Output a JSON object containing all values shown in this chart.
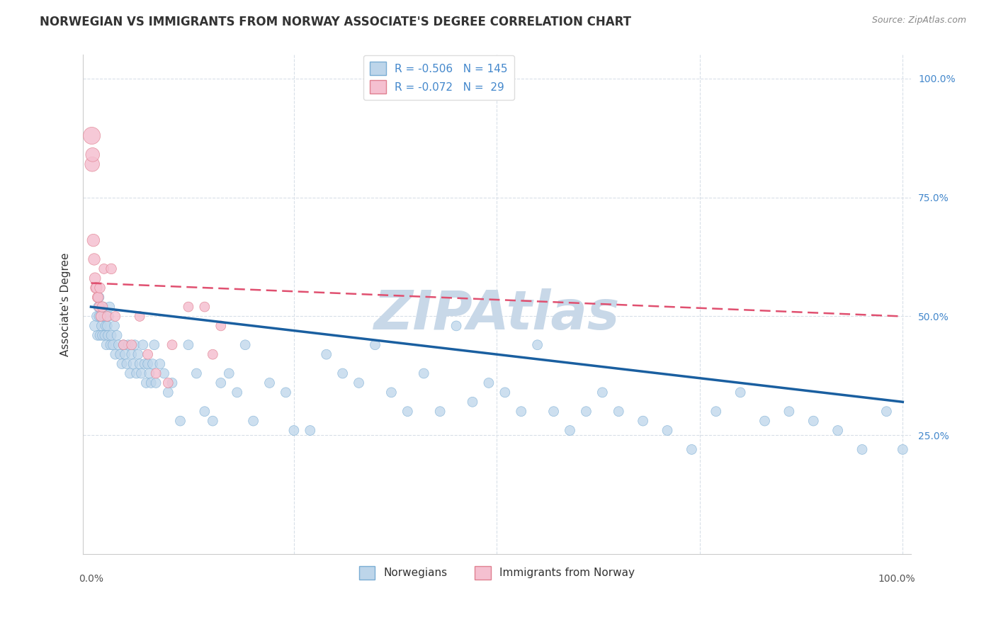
{
  "title": "NORWEGIAN VS IMMIGRANTS FROM NORWAY ASSOCIATE'S DEGREE CORRELATION CHART",
  "source": "Source: ZipAtlas.com",
  "ylabel": "Associate's Degree",
  "legend_blue_R": "-0.506",
  "legend_blue_N": "145",
  "legend_pink_R": "-0.072",
  "legend_pink_N": "29",
  "blue_face_color": "#bdd5ea",
  "blue_edge_color": "#7aadd4",
  "blue_line_color": "#1a5fa0",
  "pink_face_color": "#f5c0d0",
  "pink_edge_color": "#e08090",
  "pink_line_color": "#e05070",
  "watermark_color": "#c8d8e8",
  "grid_color": "#d8dfe8",
  "legend_label_blue": "Norwegians",
  "legend_label_pink": "Immigrants from Norway",
  "blue_scatter_x": [
    0.5,
    0.7,
    0.8,
    0.9,
    1.0,
    1.0,
    1.1,
    1.2,
    1.3,
    1.4,
    1.5,
    1.6,
    1.7,
    1.8,
    1.9,
    2.0,
    2.1,
    2.2,
    2.3,
    2.4,
    2.5,
    2.7,
    2.9,
    3.0,
    3.2,
    3.4,
    3.6,
    3.8,
    4.0,
    4.2,
    4.4,
    4.6,
    4.8,
    5.0,
    5.2,
    5.4,
    5.6,
    5.8,
    6.0,
    6.2,
    6.4,
    6.6,
    6.8,
    7.0,
    7.2,
    7.4,
    7.6,
    7.8,
    8.0,
    8.5,
    9.0,
    9.5,
    10.0,
    11.0,
    12.0,
    13.0,
    14.0,
    15.0,
    16.0,
    17.0,
    18.0,
    19.0,
    20.0,
    22.0,
    24.0,
    25.0,
    27.0,
    29.0,
    31.0,
    33.0,
    35.0,
    37.0,
    39.0,
    41.0,
    43.0,
    45.0,
    47.0,
    49.0,
    51.0,
    53.0,
    55.0,
    57.0,
    59.0,
    61.0,
    63.0,
    65.0,
    68.0,
    71.0,
    74.0,
    77.0,
    80.0,
    83.0,
    86.0,
    89.0,
    92.0,
    95.0,
    98.0,
    100.0
  ],
  "blue_scatter_y": [
    48,
    50,
    46,
    52,
    50,
    54,
    46,
    50,
    48,
    46,
    52,
    50,
    46,
    48,
    44,
    48,
    46,
    50,
    52,
    44,
    46,
    44,
    48,
    42,
    46,
    44,
    42,
    40,
    44,
    42,
    40,
    44,
    38,
    42,
    40,
    44,
    38,
    42,
    40,
    38,
    44,
    40,
    36,
    40,
    38,
    36,
    40,
    44,
    36,
    40,
    38,
    34,
    36,
    28,
    44,
    38,
    30,
    28,
    36,
    38,
    34,
    44,
    28,
    36,
    34,
    26,
    26,
    42,
    38,
    36,
    44,
    34,
    30,
    38,
    30,
    48,
    32,
    36,
    34,
    30,
    44,
    30,
    26,
    30,
    34,
    30,
    28,
    26,
    22,
    30,
    34,
    28,
    30,
    28,
    26,
    22,
    30,
    22
  ],
  "blue_scatter_s": [
    120,
    100,
    100,
    100,
    100,
    100,
    100,
    100,
    100,
    100,
    100,
    100,
    100,
    100,
    100,
    100,
    100,
    100,
    100,
    100,
    100,
    100,
    100,
    100,
    100,
    100,
    100,
    100,
    100,
    100,
    100,
    100,
    100,
    100,
    100,
    100,
    100,
    100,
    100,
    100,
    100,
    100,
    100,
    100,
    100,
    100,
    100,
    100,
    100,
    100,
    100,
    100,
    100,
    100,
    100,
    100,
    100,
    100,
    100,
    100,
    100,
    100,
    100,
    100,
    100,
    100,
    100,
    100,
    100,
    100,
    100,
    100,
    100,
    100,
    100,
    100,
    100,
    100,
    100,
    100,
    100,
    100,
    100,
    100,
    100,
    100,
    100,
    100,
    100,
    100,
    100,
    100,
    100,
    100,
    100,
    100,
    100,
    100
  ],
  "pink_scatter_x": [
    0.1,
    0.15,
    0.2,
    0.3,
    0.4,
    0.5,
    0.6,
    0.7,
    0.8,
    0.9,
    1.0,
    1.1,
    1.2,
    1.4,
    1.6,
    2.0,
    2.5,
    3.0,
    4.0,
    5.0,
    6.0,
    7.0,
    8.0,
    9.5,
    10.0,
    12.0,
    14.0,
    15.0,
    16.0
  ],
  "pink_scatter_y": [
    88,
    82,
    84,
    66,
    62,
    58,
    56,
    56,
    54,
    54,
    52,
    56,
    50,
    52,
    60,
    50,
    60,
    50,
    44,
    44,
    50,
    42,
    38,
    36,
    44,
    52,
    52,
    42,
    48
  ],
  "pink_scatter_s": [
    300,
    220,
    200,
    160,
    140,
    130,
    120,
    120,
    110,
    110,
    100,
    110,
    100,
    110,
    100,
    100,
    110,
    100,
    100,
    100,
    100,
    100,
    100,
    100,
    100,
    100,
    100,
    100,
    100
  ],
  "blue_trend_x": [
    0,
    100
  ],
  "blue_trend_y": [
    52,
    32
  ],
  "pink_trend_x": [
    0,
    100
  ],
  "pink_trend_y": [
    57,
    50
  ],
  "xlim": [
    -1,
    101
  ],
  "ylim": [
    0,
    105
  ],
  "ytick_positions": [
    25,
    50,
    75,
    100
  ],
  "ytick_labels": [
    "25.0%",
    "50.0%",
    "75.0%",
    "100.0%"
  ],
  "background_color": "#ffffff"
}
